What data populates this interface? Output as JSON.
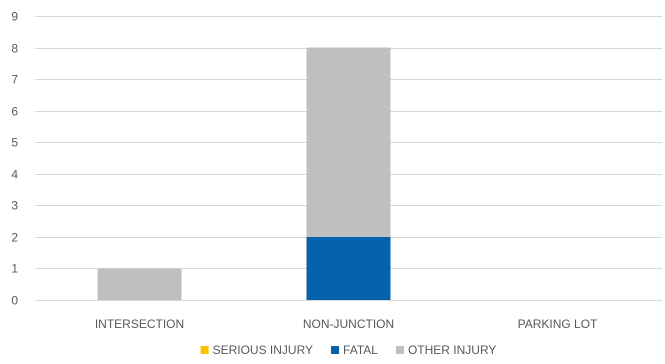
{
  "chart_data": {
    "type": "bar",
    "stacked": true,
    "categories": [
      "INTERSECTION",
      "NON-JUNCTION",
      "PARKING LOT"
    ],
    "series": [
      {
        "name": "SERIOUS INJURY",
        "values": [
          0,
          0,
          0
        ],
        "color": "#FFC000"
      },
      {
        "name": "FATAL",
        "values": [
          0,
          2,
          0
        ],
        "color": "#0563AE"
      },
      {
        "name": "OTHER INJURY",
        "values": [
          1,
          6,
          0
        ],
        "color": "#BFBFBF"
      }
    ],
    "ylim": [
      0,
      9
    ],
    "yticks": [
      0,
      1,
      2,
      3,
      4,
      5,
      6,
      7,
      8,
      9
    ],
    "grid": true,
    "legend_position": "bottom"
  }
}
